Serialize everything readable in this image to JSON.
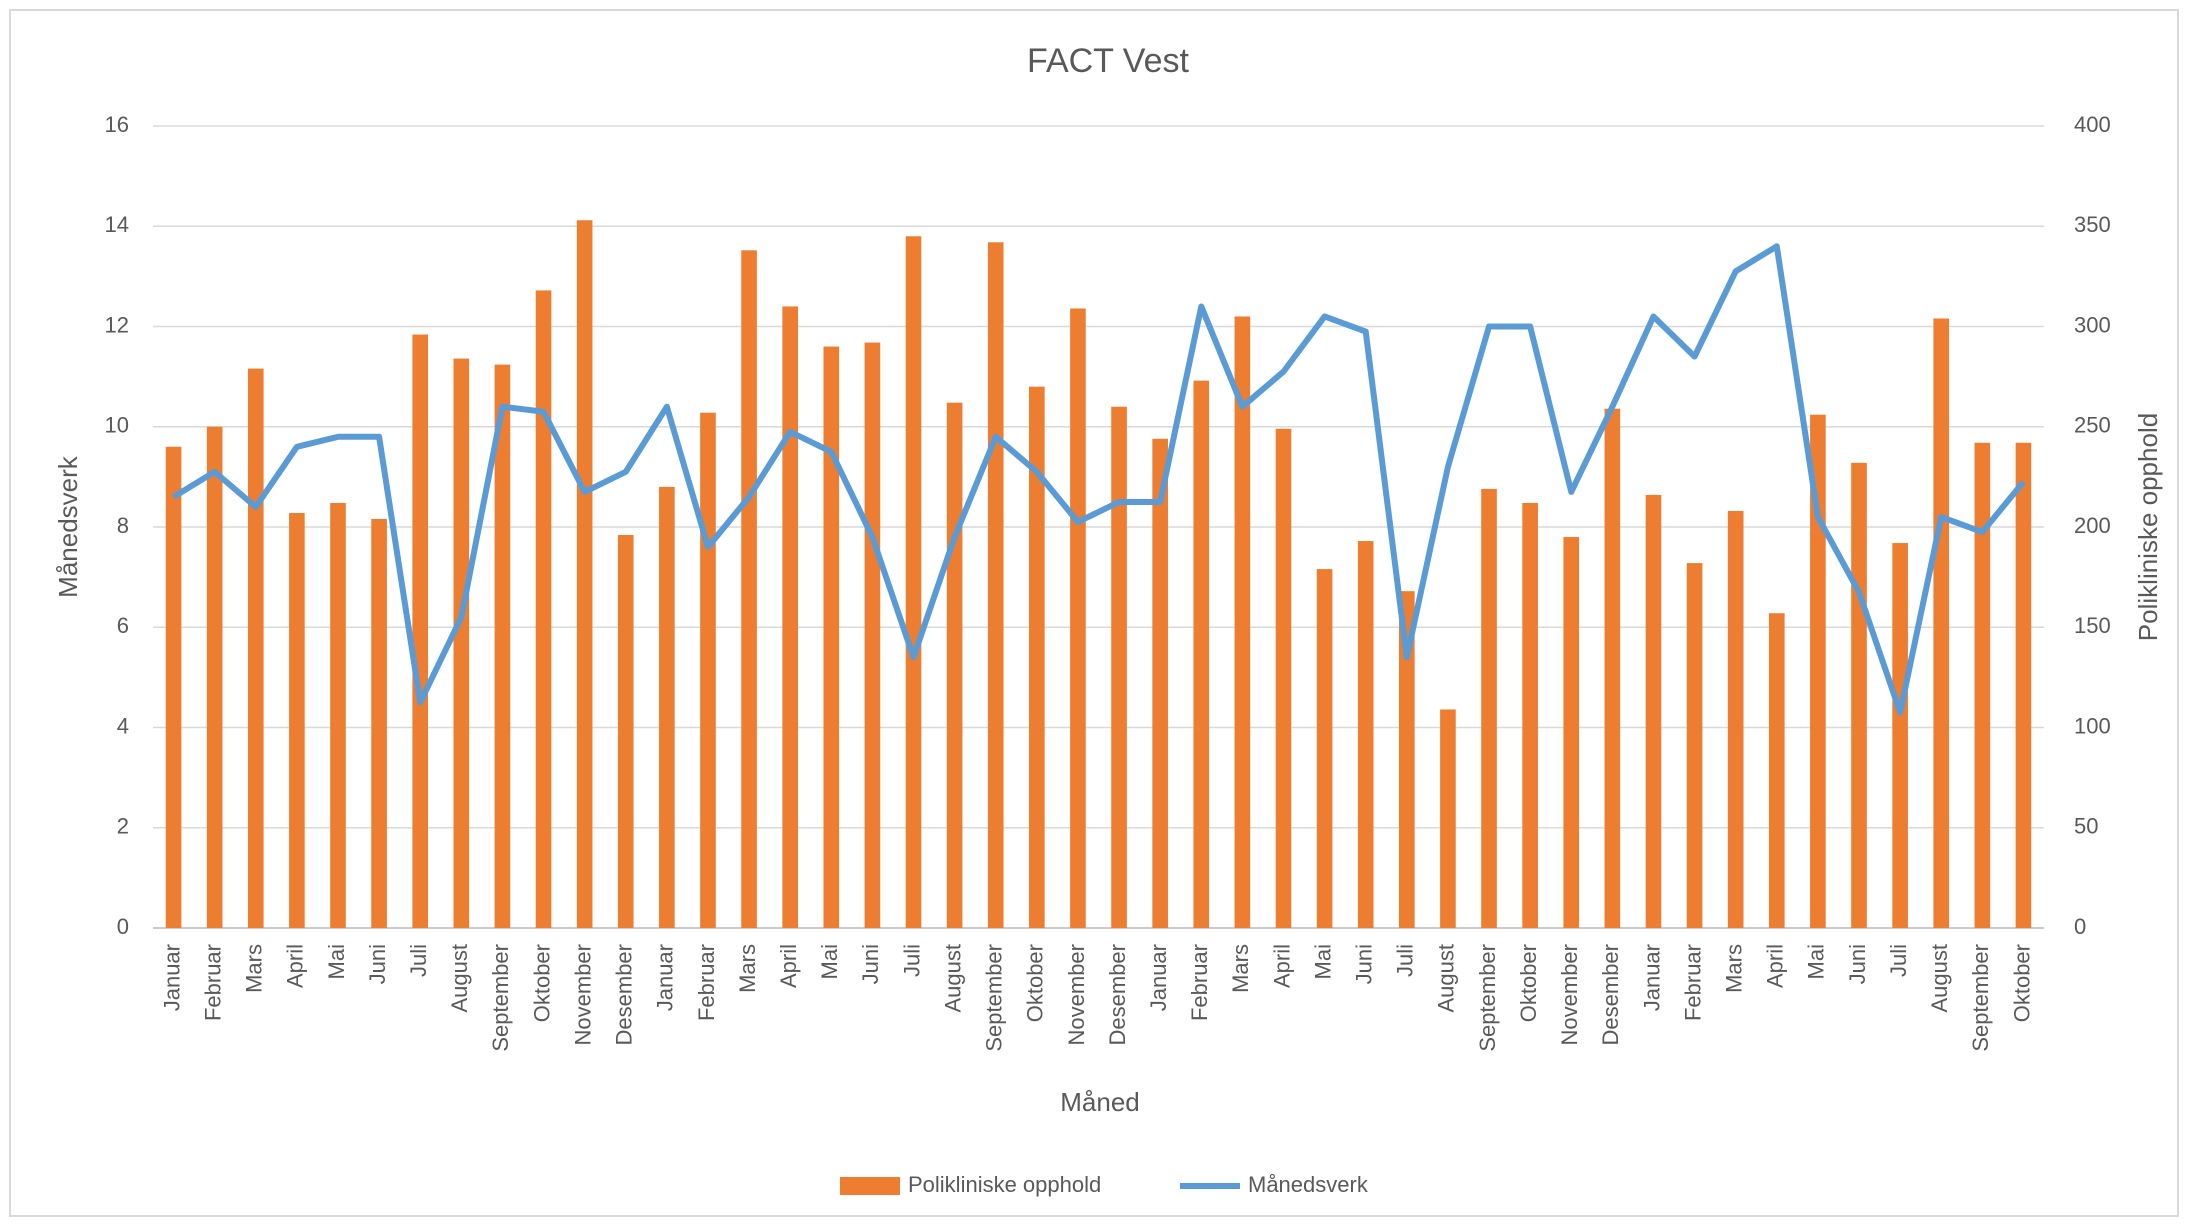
{
  "chart_data": {
    "type": "bar-line",
    "title": "FACT Vest",
    "x_label": "Måned",
    "y_label": "Månedsverk",
    "y2_label": "Polikliniske opphold",
    "categories": [
      "Januar",
      "Februar",
      "Mars",
      "April",
      "Mai",
      "Juni",
      "Juli",
      "August",
      "September",
      "Oktober",
      "November",
      "Desember",
      "Januar",
      "Februar",
      "Mars",
      "April",
      "Mai",
      "Juni",
      "Juli",
      "August",
      "September",
      "Oktober",
      "November",
      "Desember",
      "Januar",
      "Februar",
      "Mars",
      "April",
      "Mai",
      "Juni",
      "Juli",
      "August",
      "September",
      "Oktober",
      "November",
      "Desember",
      "Januar",
      "Februar",
      "Mars",
      "April",
      "Mai",
      "Juni",
      "Juli",
      "August",
      "September",
      "Oktober"
    ],
    "series": [
      {
        "name": "Polikliniske opphold",
        "type": "bar",
        "axis": "y2",
        "color": "#ED7D31",
        "values": [
          240,
          250,
          279,
          207,
          212,
          204,
          296,
          284,
          281,
          318,
          353,
          196,
          220,
          257,
          338,
          310,
          290,
          292,
          345,
          262,
          342,
          270,
          309,
          260,
          244,
          273,
          305,
          249,
          179,
          193,
          168,
          109,
          219,
          212,
          195,
          259,
          216,
          182,
          208,
          157,
          256,
          232,
          192,
          304,
          242,
          242
        ]
      },
      {
        "name": "Månedsverk",
        "type": "line",
        "axis": "y",
        "color": "#5B9BD5",
        "values": [
          8.6,
          9.1,
          8.4,
          9.6,
          9.8,
          9.8,
          4.5,
          6.2,
          10.4,
          10.3,
          8.7,
          9.1,
          10.4,
          7.6,
          8.6,
          9.9,
          9.5,
          7.8,
          5.4,
          7.8,
          9.8,
          9.1,
          8.1,
          8.5,
          8.5,
          12.4,
          10.4,
          11.1,
          12.2,
          11.9,
          5.4,
          9.2,
          12.0,
          12.0,
          8.7,
          10.4,
          12.2,
          11.4,
          13.1,
          13.6,
          8.2,
          6.7,
          4.3,
          8.2,
          7.9,
          8.9
        ]
      }
    ],
    "ylim": [
      0,
      16
    ],
    "yticks": [
      0,
      2,
      4,
      6,
      8,
      10,
      12,
      14,
      16
    ],
    "y2lim": [
      0,
      400
    ],
    "y2ticks": [
      0,
      50,
      100,
      150,
      200,
      250,
      300,
      350,
      400
    ],
    "grid": true,
    "legend": "bottom"
  }
}
